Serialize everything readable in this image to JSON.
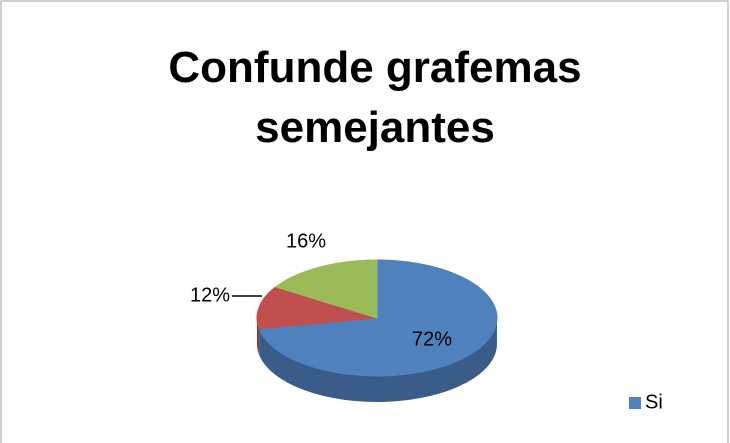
{
  "chart_data": {
    "type": "pie",
    "title": "Confunde grafemas semejantes",
    "categories": [
      "Si",
      null,
      null
    ],
    "values": [
      72,
      12,
      16
    ],
    "value_labels": [
      "72%",
      "12%",
      "16%"
    ],
    "colors": [
      "#4f81bd",
      "#c0504d",
      "#9bbb59"
    ],
    "legend": "right"
  }
}
